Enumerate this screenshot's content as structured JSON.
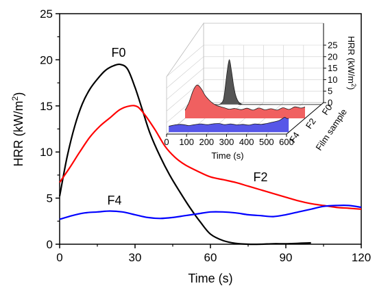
{
  "chart_data": [
    {
      "type": "line",
      "xlabel": "Time (s)",
      "ylabel": "HRR (kW/m",
      "ylabel_sup": "2",
      "ylabel_close": ")",
      "xlim": [
        0,
        120
      ],
      "ylim": [
        0,
        25
      ],
      "xticks": [
        "0",
        "30",
        "60",
        "90",
        "120"
      ],
      "yticks": [
        "0",
        "5",
        "10",
        "15",
        "20",
        "25"
      ],
      "grid": false,
      "series": [
        {
          "name": "F0",
          "color": "#000000",
          "x": [
            0,
            3,
            6,
            9,
            12,
            15,
            18,
            21,
            24,
            27,
            30,
            33,
            36,
            40,
            44,
            48,
            52,
            56,
            60,
            65,
            70,
            75,
            80,
            85,
            90,
            95,
            100
          ],
          "y": [
            5.2,
            9.5,
            12.8,
            15.2,
            16.8,
            17.9,
            18.8,
            19.3,
            19.5,
            19.0,
            17.0,
            14.5,
            12.0,
            9.5,
            7.4,
            5.6,
            3.9,
            2.4,
            1.1,
            0.4,
            0.1,
            0.0,
            0.0,
            0.05,
            0.05,
            0.1,
            0.15
          ]
        },
        {
          "name": "F2",
          "color": "#ff0000",
          "x": [
            0,
            4,
            8,
            12,
            16,
            20,
            24,
            28,
            31,
            34,
            38,
            42,
            46,
            50,
            55,
            60,
            65,
            70,
            75,
            80,
            85,
            90,
            95,
            100,
            105,
            110,
            115,
            120
          ],
          "y": [
            6.7,
            8.3,
            10.0,
            11.6,
            12.8,
            13.7,
            14.6,
            15.0,
            14.9,
            14.0,
            12.4,
            10.6,
            9.4,
            8.6,
            7.9,
            7.3,
            7.0,
            6.7,
            6.3,
            5.9,
            5.5,
            5.1,
            4.7,
            4.4,
            4.2,
            4.0,
            3.9,
            3.8
          ]
        },
        {
          "name": "F4",
          "color": "#0000ff",
          "x": [
            0,
            5,
            10,
            15,
            20,
            25,
            30,
            35,
            40,
            45,
            50,
            55,
            60,
            65,
            70,
            75,
            80,
            85,
            90,
            95,
            100,
            105,
            110,
            115,
            120
          ],
          "y": [
            2.7,
            3.1,
            3.4,
            3.5,
            3.6,
            3.5,
            3.2,
            2.9,
            2.8,
            2.9,
            3.1,
            3.3,
            3.5,
            3.5,
            3.4,
            3.2,
            3.1,
            3.0,
            3.2,
            3.5,
            3.8,
            4.1,
            4.2,
            4.2,
            4.0
          ]
        }
      ]
    },
    {
      "type": "area",
      "inset": true,
      "xlabel": "Time (s)",
      "ylabel": "HRR (kW/m",
      "ylabel_sup": "2",
      "ylabel_close": ")",
      "zlabel": "Film sample",
      "xlim": [
        0,
        600
      ],
      "ylim": [
        0,
        25
      ],
      "xticks": [
        "0",
        "100",
        "200",
        "300",
        "400",
        "500",
        "600"
      ],
      "yticks": [
        "0",
        "5",
        "10",
        "15",
        "20",
        "25"
      ],
      "sample_ticks": [
        "F0",
        "F2",
        "F4"
      ],
      "series": [
        {
          "name": "F0",
          "color": "#555555",
          "x": [
            0,
            70,
            90,
            110,
            120,
            130,
            140,
            150,
            160,
            170,
            180,
            190,
            200,
            220,
            600
          ],
          "y": [
            0,
            0,
            0,
            2,
            8,
            15,
            19.5,
            15,
            9,
            4.5,
            2,
            0.8,
            0.3,
            0,
            0
          ]
        },
        {
          "name": "F2",
          "color": "#f06060",
          "x": [
            0,
            20,
            40,
            60,
            80,
            100,
            120,
            140,
            160,
            180,
            200,
            220,
            250,
            280,
            310,
            340,
            370,
            400,
            430,
            460,
            490,
            520,
            550,
            580,
            600
          ],
          "y": [
            3.5,
            7,
            12,
            14.5,
            13,
            10,
            8,
            6.5,
            5.5,
            5,
            4.5,
            4,
            4.3,
            3.8,
            4.4,
            3.6,
            4.5,
            3.7,
            4.2,
            3.6,
            4.6,
            3.9,
            5,
            4.5,
            5
          ]
        },
        {
          "name": "F4",
          "color": "#5656e8",
          "x": [
            0,
            20,
            40,
            60,
            80,
            100,
            130,
            160,
            190,
            220,
            250,
            280,
            310,
            340,
            370,
            400,
            430,
            460,
            490,
            520,
            550,
            570,
            580,
            590,
            600
          ],
          "y": [
            2.6,
            3,
            3.3,
            3.4,
            3.2,
            2.9,
            3.3,
            3.6,
            3.3,
            3.6,
            3.8,
            3.3,
            3.6,
            3.2,
            3.4,
            3.1,
            3.6,
            3.4,
            3.8,
            4.4,
            5,
            6,
            6.5,
            6,
            6
          ]
        }
      ]
    }
  ]
}
